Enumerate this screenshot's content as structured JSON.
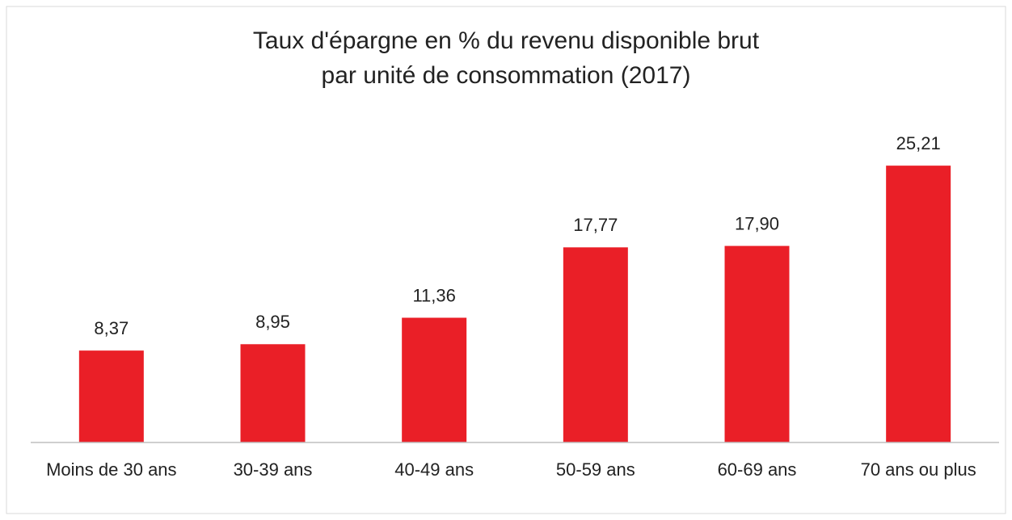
{
  "chart_data": {
    "type": "bar",
    "title": [
      "Taux d'épargne en % du revenu disponible brut",
      "par unité de consommation (2017)"
    ],
    "categories": [
      "Moins de 30 ans",
      "30-39 ans",
      "40-49 ans",
      "50-59 ans",
      "60-69 ans",
      "70 ans ou plus"
    ],
    "values": [
      8.37,
      8.95,
      11.36,
      17.77,
      17.9,
      25.21
    ],
    "value_labels": [
      "8,37",
      "8,95",
      "11,36",
      "17,77",
      "17,90",
      "25,21"
    ],
    "color": "#ea1f27",
    "ylim": [
      0,
      30
    ]
  }
}
